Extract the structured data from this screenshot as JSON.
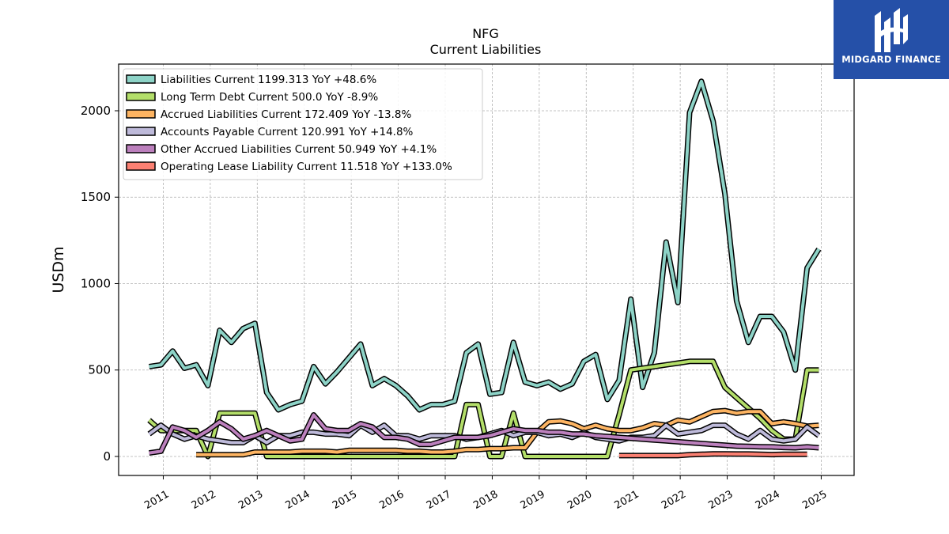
{
  "brand": {
    "name": "MIDGARD FINANCE",
    "color": "#2550a8"
  },
  "chart_data": {
    "type": "line",
    "title": "NFG",
    "subtitle": "Current  Liabilities",
    "ylabel": "USDm",
    "xlabel": "",
    "ylim": [
      -110,
      2270
    ],
    "xlim": [
      2010.05,
      2025.7
    ],
    "yticks": [
      0,
      500,
      1000,
      1500,
      2000
    ],
    "xticks": [
      2011,
      2012,
      2013,
      2014,
      2015,
      2016,
      2017,
      2018,
      2019,
      2020,
      2021,
      2022,
      2023,
      2024,
      2025
    ],
    "grid": true,
    "legend_position": "top-left",
    "series": [
      {
        "name": "Liabilities Current  1199.313 YoY +48.6%",
        "color": "#8dd3c7",
        "x": [
          2010.7,
          2010.95,
          2011.2,
          2011.45,
          2011.7,
          2011.95,
          2012.2,
          2012.45,
          2012.7,
          2012.95,
          2013.2,
          2013.45,
          2013.7,
          2013.95,
          2014.2,
          2014.45,
          2014.7,
          2014.95,
          2015.2,
          2015.45,
          2015.7,
          2015.95,
          2016.2,
          2016.45,
          2016.7,
          2016.95,
          2017.2,
          2017.45,
          2017.7,
          2017.95,
          2018.2,
          2018.45,
          2018.7,
          2018.95,
          2019.2,
          2019.45,
          2019.7,
          2019.95,
          2020.2,
          2020.45,
          2020.7,
          2020.95,
          2021.2,
          2021.45,
          2021.7,
          2021.95,
          2022.2,
          2022.45,
          2022.7,
          2022.95,
          2023.2,
          2023.45,
          2023.7,
          2023.95,
          2024.2,
          2024.45,
          2024.7,
          2024.95
        ],
        "values": [
          520,
          530,
          610,
          510,
          530,
          410,
          730,
          660,
          740,
          770,
          370,
          270,
          300,
          320,
          520,
          420,
          490,
          570,
          650,
          410,
          450,
          410,
          350,
          270,
          300,
          300,
          320,
          600,
          650,
          360,
          370,
          660,
          430,
          410,
          430,
          390,
          420,
          550,
          590,
          330,
          440,
          910,
          400,
          600,
          1240,
          890,
          1990,
          2170,
          1940,
          1520,
          900,
          660,
          810,
          810,
          720,
          500,
          1090,
          1200
        ]
      },
      {
        "name": "Long Term Debt Current  500.0 YoY -8.9%",
        "color": "#b3de69",
        "x": [
          2010.7,
          2010.95,
          2011.2,
          2011.45,
          2011.7,
          2011.95,
          2012.2,
          2012.45,
          2012.7,
          2012.95,
          2013.2,
          2013.45,
          2013.7,
          2013.95,
          2014.2,
          2014.45,
          2014.7,
          2014.95,
          2015.2,
          2015.45,
          2015.7,
          2015.95,
          2016.2,
          2016.45,
          2016.7,
          2016.95,
          2017.2,
          2017.45,
          2017.7,
          2017.95,
          2018.2,
          2018.45,
          2018.7,
          2018.95,
          2019.2,
          2019.45,
          2019.7,
          2019.95,
          2020.2,
          2020.45,
          2020.7,
          2020.95,
          2021.2,
          2021.45,
          2021.7,
          2021.95,
          2022.2,
          2022.45,
          2022.7,
          2022.95,
          2023.2,
          2023.45,
          2023.7,
          2023.95,
          2024.2,
          2024.45,
          2024.7,
          2024.95
        ],
        "values": [
          210,
          150,
          150,
          150,
          150,
          0,
          250,
          250,
          250,
          250,
          0,
          0,
          0,
          0,
          0,
          0,
          0,
          0,
          0,
          0,
          0,
          0,
          0,
          0,
          0,
          0,
          0,
          300,
          300,
          0,
          0,
          250,
          0,
          0,
          0,
          0,
          0,
          0,
          0,
          0,
          240,
          500,
          510,
          520,
          530,
          540,
          550,
          550,
          550,
          400,
          340,
          280,
          220,
          150,
          100,
          100,
          500,
          500
        ]
      },
      {
        "name": "Accrued Liabilities Current  172.409 YoY -13.8%",
        "color": "#fdb462",
        "x": [
          2011.7,
          2011.95,
          2012.2,
          2012.45,
          2012.7,
          2012.95,
          2013.2,
          2013.45,
          2013.7,
          2013.95,
          2014.2,
          2014.45,
          2014.7,
          2014.95,
          2015.2,
          2015.45,
          2015.7,
          2015.95,
          2016.2,
          2016.45,
          2016.7,
          2016.95,
          2017.2,
          2017.45,
          2017.7,
          2017.95,
          2018.2,
          2018.45,
          2018.7,
          2018.95,
          2019.2,
          2019.45,
          2019.7,
          2019.95,
          2020.2,
          2020.45,
          2020.7,
          2020.95,
          2021.2,
          2021.45,
          2021.7,
          2021.95,
          2022.2,
          2022.45,
          2022.7,
          2022.95,
          2023.2,
          2023.45,
          2023.7,
          2023.95,
          2024.2,
          2024.45,
          2024.7,
          2024.95
        ],
        "values": [
          10,
          10,
          10,
          10,
          10,
          25,
          25,
          25,
          25,
          30,
          30,
          30,
          25,
          35,
          35,
          35,
          35,
          35,
          30,
          30,
          25,
          25,
          30,
          40,
          40,
          45,
          45,
          50,
          50,
          140,
          200,
          205,
          190,
          160,
          180,
          160,
          150,
          150,
          165,
          190,
          180,
          210,
          200,
          230,
          260,
          265,
          250,
          260,
          260,
          190,
          200,
          190,
          175,
          180
        ]
      },
      {
        "name": "Accounts Payable Current  120.991 YoY +14.8%",
        "color": "#bebada",
        "x": [
          2010.7,
          2010.95,
          2011.2,
          2011.45,
          2011.7,
          2011.95,
          2012.2,
          2012.45,
          2012.7,
          2012.95,
          2013.2,
          2013.45,
          2013.7,
          2013.95,
          2014.2,
          2014.45,
          2014.7,
          2014.95,
          2015.2,
          2015.45,
          2015.7,
          2015.95,
          2016.2,
          2016.45,
          2016.7,
          2016.95,
          2017.2,
          2017.45,
          2017.7,
          2017.95,
          2018.2,
          2018.45,
          2018.7,
          2018.95,
          2019.2,
          2019.45,
          2019.7,
          2019.95,
          2020.2,
          2020.45,
          2020.7,
          2020.95,
          2021.2,
          2021.45,
          2021.7,
          2021.95,
          2022.2,
          2022.45,
          2022.7,
          2022.95,
          2023.2,
          2023.45,
          2023.7,
          2023.95,
          2024.2,
          2024.45,
          2024.7,
          2024.95
        ],
        "values": [
          130,
          180,
          130,
          100,
          120,
          100,
          90,
          80,
          80,
          120,
          80,
          120,
          120,
          140,
          140,
          130,
          130,
          120,
          180,
          140,
          180,
          120,
          120,
          100,
          120,
          120,
          120,
          100,
          110,
          130,
          150,
          120,
          140,
          140,
          120,
          130,
          110,
          140,
          110,
          100,
          90,
          110,
          110,
          120,
          180,
          130,
          140,
          150,
          180,
          180,
          130,
          100,
          150,
          100,
          90,
          100,
          170,
          120
        ]
      },
      {
        "name": "Other Accrued Liabilities Current  50.949 YoY +4.1%",
        "color": "#bc80bd",
        "x": [
          2010.7,
          2010.95,
          2011.2,
          2011.45,
          2011.7,
          2011.95,
          2012.2,
          2012.45,
          2012.7,
          2012.95,
          2013.2,
          2013.45,
          2013.7,
          2013.95,
          2014.2,
          2014.45,
          2014.7,
          2014.95,
          2015.2,
          2015.45,
          2015.7,
          2015.95,
          2016.2,
          2016.45,
          2016.7,
          2016.95,
          2017.2,
          2017.45,
          2017.7,
          2017.95,
          2018.2,
          2018.45,
          2018.7,
          2018.95,
          2019.2,
          2019.45,
          2019.7,
          2019.95,
          2020.2,
          2020.45,
          2020.7,
          2020.95,
          2021.2,
          2021.45,
          2021.7,
          2021.95,
          2022.2,
          2022.45,
          2022.7,
          2022.95,
          2023.2,
          2023.45,
          2023.7,
          2023.95,
          2024.2,
          2024.45,
          2024.7,
          2024.95
        ],
        "values": [
          20,
          30,
          170,
          150,
          110,
          150,
          200,
          160,
          100,
          120,
          150,
          120,
          90,
          100,
          240,
          160,
          150,
          150,
          190,
          170,
          110,
          110,
          100,
          70,
          70,
          90,
          110,
          110,
          110,
          120,
          140,
          160,
          150,
          150,
          140,
          140,
          130,
          130,
          120,
          115,
          110,
          105,
          100,
          95,
          90,
          85,
          80,
          75,
          70,
          65,
          60,
          58,
          56,
          55,
          52,
          50,
          55,
          50
        ]
      },
      {
        "name": "Operating Lease Liability Current  11.518 YoY +133.0%",
        "color": "#fb8072",
        "x": [
          2020.7,
          2020.95,
          2021.2,
          2021.45,
          2021.7,
          2021.95,
          2022.2,
          2022.45,
          2022.7,
          2022.95,
          2023.2,
          2023.45,
          2023.7,
          2023.95,
          2024.2,
          2024.45,
          2024.7
        ],
        "values": [
          5,
          5,
          5,
          5,
          5,
          5,
          10,
          12,
          15,
          15,
          14,
          14,
          12,
          11,
          12,
          12,
          12
        ]
      }
    ]
  }
}
